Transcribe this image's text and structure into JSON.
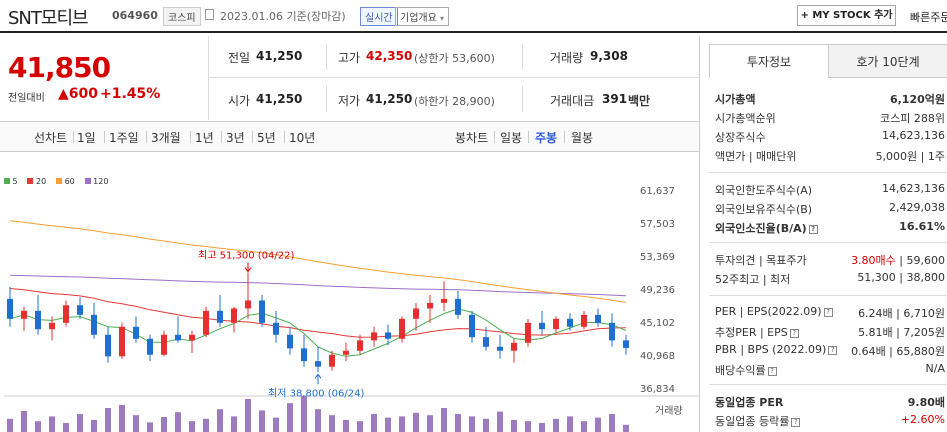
{
  "header": {
    "company": "SNT모티브",
    "code": "064960",
    "market": "코스피",
    "date_info": "2023.01.06 기준(장마감)",
    "live_badge": "실시간",
    "company_overview": "기업개요",
    "my_stock_btn": "+ MY STOCK 추가",
    "fast_order": "빠른주문"
  },
  "price": {
    "current": "41,850",
    "change_label": "전일대비",
    "change_value": "▲600",
    "change_pct": "+1.45%"
  },
  "quote": {
    "prev_label": "전일",
    "prev": "41,250",
    "high_label": "고가",
    "high": "42,350",
    "upper_limit": "(상한가 53,600)",
    "volume_label": "거래량",
    "volume": "9,308",
    "open_label": "시가",
    "open": "41,250",
    "low_label": "저가",
    "low": "41,250",
    "lower_limit": "(하한가 28,900)",
    "amount_label": "거래대금",
    "amount": "391",
    "amount_unit": "백만"
  },
  "period_tabs": {
    "line_label": "선차트",
    "line_items": [
      "1일",
      "1주일",
      "3개월",
      "1년",
      "3년",
      "5년",
      "10년"
    ],
    "candle_label": "봉차트",
    "candle_items": [
      "일봉",
      "주봉",
      "월봉"
    ],
    "candle_selected": "주봉"
  },
  "legend": [
    {
      "label": "5",
      "color": "#4caf50"
    },
    {
      "label": "20",
      "color": "#e53935"
    },
    {
      "label": "60",
      "color": "#f5a033"
    },
    {
      "label": "120",
      "color": "#9c6fc9"
    }
  ],
  "chart_data": {
    "type": "candlestick",
    "y_ticks": [
      "61,637",
      "57,503",
      "53,369",
      "49,236",
      "45,102",
      "40,968",
      "36,834"
    ],
    "ylim": [
      36834,
      61637
    ],
    "high_annotation": "최고 51,300 (04/22)",
    "low_annotation": "최저 38,800 (06/24)",
    "volume_label": "거래량",
    "candles": [
      [
        48000,
        49500,
        44500,
        45500
      ],
      [
        45500,
        47000,
        44000,
        46500
      ],
      [
        46500,
        48500,
        43500,
        44200
      ],
      [
        44200,
        45800,
        42800,
        45000
      ],
      [
        45000,
        47800,
        44500,
        47200
      ],
      [
        47200,
        48200,
        45500,
        46000
      ],
      [
        46000,
        47500,
        43000,
        43500
      ],
      [
        43500,
        44500,
        40000,
        40800
      ],
      [
        40800,
        45000,
        40500,
        44500
      ],
      [
        44500,
        45800,
        42500,
        43000
      ],
      [
        43000,
        43500,
        40200,
        41000
      ],
      [
        41000,
        44000,
        40800,
        43500
      ],
      [
        43500,
        45800,
        42500,
        42800
      ],
      [
        42800,
        44000,
        41200,
        43500
      ],
      [
        43500,
        47000,
        43200,
        46500
      ],
      [
        46500,
        48500,
        44500,
        45000
      ],
      [
        45000,
        47000,
        43800,
        46800
      ],
      [
        46800,
        51300,
        45500,
        47800
      ],
      [
        47800,
        48500,
        44500,
        45000
      ],
      [
        45000,
        46500,
        42500,
        43500
      ],
      [
        43500,
        44500,
        41000,
        41800
      ],
      [
        41800,
        43500,
        39500,
        40200
      ],
      [
        40200,
        42000,
        38800,
        39500
      ],
      [
        39500,
        41500,
        39000,
        41000
      ],
      [
        41000,
        42500,
        40200,
        41500
      ],
      [
        41500,
        43500,
        41000,
        42800
      ],
      [
        42800,
        44500,
        42000,
        43800
      ],
      [
        43800,
        44800,
        42200,
        43000
      ],
      [
        43000,
        45800,
        42500,
        45500
      ],
      [
        45500,
        47500,
        44000,
        46800
      ],
      [
        46800,
        48500,
        45000,
        47500
      ],
      [
        47500,
        50200,
        46500,
        48000
      ],
      [
        48000,
        49000,
        45500,
        46000
      ],
      [
        46000,
        46500,
        42500,
        43200
      ],
      [
        43200,
        44500,
        41500,
        42000
      ],
      [
        42000,
        43500,
        40500,
        41500
      ],
      [
        41500,
        43000,
        40000,
        42500
      ],
      [
        42500,
        45500,
        42000,
        45000
      ],
      [
        45000,
        46500,
        43500,
        44200
      ],
      [
        44200,
        45800,
        43800,
        45500
      ],
      [
        45500,
        46200,
        44000,
        44500
      ],
      [
        44500,
        46500,
        44200,
        46000
      ],
      [
        46000,
        46800,
        44500,
        45000
      ],
      [
        45000,
        46200,
        42000,
        42800
      ],
      [
        42800,
        43500,
        41000,
        41850
      ]
    ],
    "volumes": [
      22,
      35,
      18,
      26,
      15,
      30,
      20,
      40,
      45,
      28,
      16,
      25,
      33,
      18,
      22,
      38,
      26,
      55,
      36,
      24,
      48,
      60,
      38,
      28,
      20,
      18,
      30,
      24,
      26,
      32,
      28,
      40,
      30,
      26,
      22,
      34,
      20,
      18,
      15,
      22,
      26,
      18,
      24,
      30,
      12
    ]
  },
  "right_panel": {
    "tabs": [
      "투자정보",
      "호가 10단계"
    ],
    "rows": [
      {
        "k": "시가총액",
        "v": "6,120억원",
        "bold": true
      },
      {
        "k": "시가총액순위",
        "v": "코스피 288위"
      },
      {
        "k": "상장주식수",
        "v": "14,623,136"
      },
      {
        "k": "액면가 | 매매단위",
        "v": "5,000원 | 1주"
      },
      {
        "k": "외국인한도주식수(A)",
        "v": "14,623,136"
      },
      {
        "k": "외국인보유주식수(B)",
        "v": "2,429,038"
      },
      {
        "k": "외국인소진율(B/A)",
        "v": "16.61%",
        "bold": true
      },
      {
        "k": "투자의견 | 목표주가",
        "v": "3.80매수 | 59,600",
        "red": "3.80매수"
      },
      {
        "k": "52주최고 | 최저",
        "v": "51,300 | 38,800"
      },
      {
        "k": "PER | EPS(2022.09)",
        "v": "6.24배 | 6,710원"
      },
      {
        "k": "추정PER | EPS",
        "v": "5.81배 | 7,205원"
      },
      {
        "k": "PBR | BPS (2022.09)",
        "v": "0.64배 | 65,880원"
      },
      {
        "k": "배당수익률",
        "v": "N/A"
      },
      {
        "k": "동일업종 PER",
        "v": "9.80배",
        "bold": true
      },
      {
        "k": "동일업종 등락률",
        "v": "+2.60%",
        "red": "+2.60%"
      }
    ]
  }
}
